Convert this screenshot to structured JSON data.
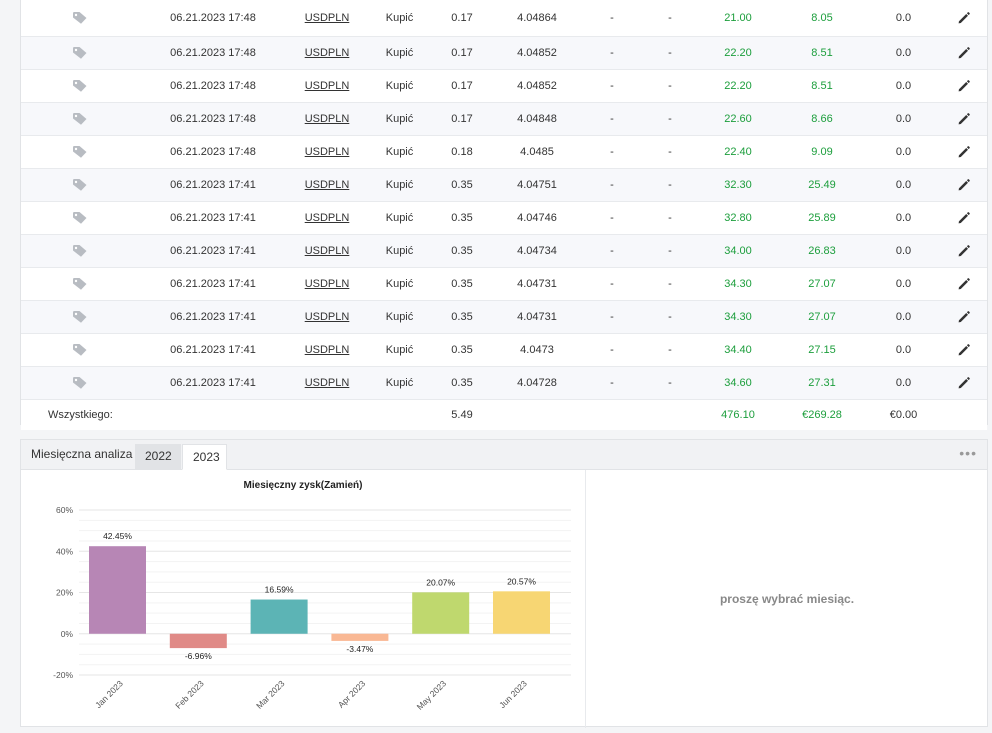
{
  "trades": {
    "rows": [
      {
        "time": "06.21.2023 17:48",
        "symbol": "USDPLN",
        "action": "Kupić",
        "lots": "0.17",
        "price": "4.04864",
        "sl": "-",
        "tp": "-",
        "pips": "21.00",
        "profit": "8.05",
        "swap": "0.0"
      },
      {
        "time": "06.21.2023 17:48",
        "symbol": "USDPLN",
        "action": "Kupić",
        "lots": "0.17",
        "price": "4.04852",
        "sl": "-",
        "tp": "-",
        "pips": "22.20",
        "profit": "8.51",
        "swap": "0.0"
      },
      {
        "time": "06.21.2023 17:48",
        "symbol": "USDPLN",
        "action": "Kupić",
        "lots": "0.17",
        "price": "4.04852",
        "sl": "-",
        "tp": "-",
        "pips": "22.20",
        "profit": "8.51",
        "swap": "0.0"
      },
      {
        "time": "06.21.2023 17:48",
        "symbol": "USDPLN",
        "action": "Kupić",
        "lots": "0.17",
        "price": "4.04848",
        "sl": "-",
        "tp": "-",
        "pips": "22.60",
        "profit": "8.66",
        "swap": "0.0"
      },
      {
        "time": "06.21.2023 17:48",
        "symbol": "USDPLN",
        "action": "Kupić",
        "lots": "0.18",
        "price": "4.0485",
        "sl": "-",
        "tp": "-",
        "pips": "22.40",
        "profit": "9.09",
        "swap": "0.0"
      },
      {
        "time": "06.21.2023 17:41",
        "symbol": "USDPLN",
        "action": "Kupić",
        "lots": "0.35",
        "price": "4.04751",
        "sl": "-",
        "tp": "-",
        "pips": "32.30",
        "profit": "25.49",
        "swap": "0.0"
      },
      {
        "time": "06.21.2023 17:41",
        "symbol": "USDPLN",
        "action": "Kupić",
        "lots": "0.35",
        "price": "4.04746",
        "sl": "-",
        "tp": "-",
        "pips": "32.80",
        "profit": "25.89",
        "swap": "0.0"
      },
      {
        "time": "06.21.2023 17:41",
        "symbol": "USDPLN",
        "action": "Kupić",
        "lots": "0.35",
        "price": "4.04734",
        "sl": "-",
        "tp": "-",
        "pips": "34.00",
        "profit": "26.83",
        "swap": "0.0"
      },
      {
        "time": "06.21.2023 17:41",
        "symbol": "USDPLN",
        "action": "Kupić",
        "lots": "0.35",
        "price": "4.04731",
        "sl": "-",
        "tp": "-",
        "pips": "34.30",
        "profit": "27.07",
        "swap": "0.0"
      },
      {
        "time": "06.21.2023 17:41",
        "symbol": "USDPLN",
        "action": "Kupić",
        "lots": "0.35",
        "price": "4.04731",
        "sl": "-",
        "tp": "-",
        "pips": "34.30",
        "profit": "27.07",
        "swap": "0.0"
      },
      {
        "time": "06.21.2023 17:41",
        "symbol": "USDPLN",
        "action": "Kupić",
        "lots": "0.35",
        "price": "4.0473",
        "sl": "-",
        "tp": "-",
        "pips": "34.40",
        "profit": "27.15",
        "swap": "0.0"
      },
      {
        "time": "06.21.2023 17:41",
        "symbol": "USDPLN",
        "action": "Kupić",
        "lots": "0.35",
        "price": "4.04728",
        "sl": "-",
        "tp": "-",
        "pips": "34.60",
        "profit": "27.31",
        "swap": "0.0"
      }
    ],
    "total": {
      "label": "Wszystkiego:",
      "lots": "5.49",
      "pips": "476.10",
      "profit": "€269.28",
      "swap": "€0.00"
    },
    "icons": {
      "tag": "tag-icon",
      "edit": "pencil-icon"
    },
    "colors": {
      "positive": "#1c9e3c"
    }
  },
  "monthly": {
    "title": "Miesięczna analiza",
    "tabs": [
      {
        "label": "2022"
      },
      {
        "label": "2023"
      }
    ],
    "active_tab": "2023",
    "menu_icon": "more-dots-icon",
    "empty_message": "proszę wybrać miesiąc."
  },
  "chart_data": {
    "type": "bar",
    "title": "Miesięczny zysk(Zamień)",
    "categories": [
      "Jan 2023",
      "Feb 2023",
      "Mar 2023",
      "Apr 2023",
      "May 2023",
      "Jun 2023"
    ],
    "values": [
      42.45,
      -6.96,
      16.59,
      -3.47,
      20.07,
      20.57
    ],
    "data_labels": [
      "42.45%",
      "-6.96%",
      "16.59%",
      "-3.47%",
      "20.07%",
      "20.57%"
    ],
    "colors": [
      "#b786b5",
      "#e08a87",
      "#5cb4b5",
      "#f9b894",
      "#bfd86e",
      "#f7d673"
    ],
    "yticks": [
      60,
      40,
      20,
      0,
      -20
    ],
    "ytick_labels": [
      "60%",
      "40%",
      "20%",
      "0%",
      "-20%"
    ],
    "ylim": [
      -20,
      60
    ],
    "grid": true
  }
}
